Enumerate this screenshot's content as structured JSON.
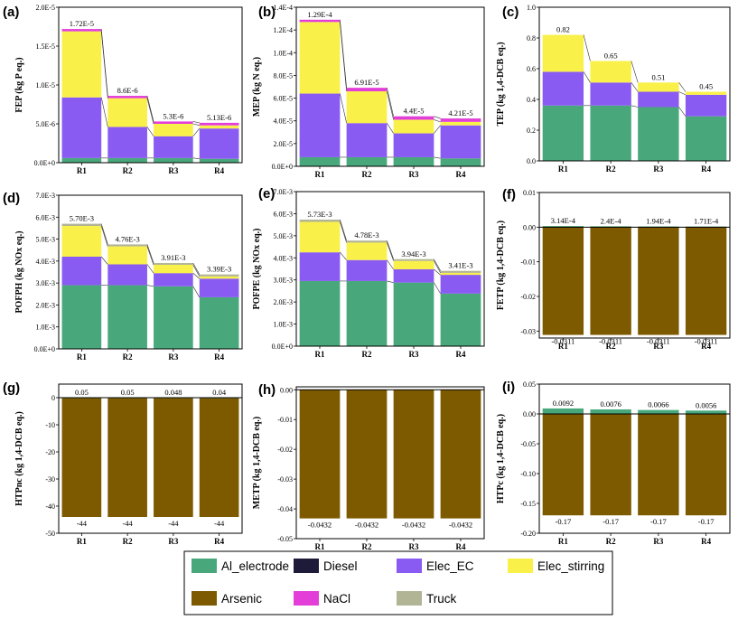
{
  "colors": {
    "Al_electrode": "#48A87C",
    "Diesel": "#1E1A3A",
    "Elec_EC": "#8A5BF2",
    "Elec_stirring": "#FAF04A",
    "Arsenic": "#7D5A00",
    "NaCl": "#E33FD8",
    "Truck": "#B2B496"
  },
  "legend": {
    "entries": [
      "Al_electrode",
      "Diesel",
      "Elec_EC",
      "Elec_stirring",
      "Arsenic",
      "NaCl",
      "Truck"
    ]
  },
  "chart_data": [
    {
      "panel": "(a)",
      "type": "bar",
      "stacked": true,
      "ylabel": "FEP (kg P eq.)",
      "categories": [
        "R1",
        "R2",
        "R3",
        "R4"
      ],
      "ylim": [
        0,
        2e-05
      ],
      "yticks": [
        0,
        5e-06,
        1e-05,
        1.5e-05,
        2e-05
      ],
      "ytick_labels": [
        "0.0E+0",
        "5.0E-6",
        "1.0E-5",
        "1.5E-5",
        "2.0E-5"
      ],
      "series": [
        {
          "name": "Al_electrode",
          "values": [
            6e-07,
            6e-07,
            6e-07,
            5e-07
          ]
        },
        {
          "name": "Elec_EC",
          "values": [
            7.8e-06,
            4e-06,
            2.8e-06,
            3.9e-06
          ]
        },
        {
          "name": "Elec_stirring",
          "values": [
            8.5e-06,
            3.7e-06,
            1.6e-06,
            4e-07
          ]
        },
        {
          "name": "NaCl",
          "values": [
            3e-07,
            3e-07,
            3e-07,
            3.3e-07
          ]
        }
      ],
      "top_labels": [
        "1.72E-5",
        "8.6E-6",
        "5.3E-6",
        "5.13E-6"
      ]
    },
    {
      "panel": "(b)",
      "type": "bar",
      "stacked": true,
      "ylabel": "MEP (kg N eq.)",
      "categories": [
        "R1",
        "R2",
        "R3",
        "R4"
      ],
      "ylim": [
        0,
        0.00014
      ],
      "yticks": [
        0,
        2e-05,
        4e-05,
        6e-05,
        8e-05,
        0.0001,
        0.00012,
        0.00014
      ],
      "ytick_labels": [
        "0.0E+0",
        "2.0E-5",
        "4.0E-5",
        "6.0E-5",
        "8.0E-5",
        "1.0E-4",
        "1.2E-4",
        "1.4E-4"
      ],
      "series": [
        {
          "name": "Al_electrode",
          "values": [
            8e-06,
            8e-06,
            8e-06,
            7e-06
          ]
        },
        {
          "name": "Elec_EC",
          "values": [
            5.6e-05,
            3e-05,
            2.1e-05,
            2.9e-05
          ]
        },
        {
          "name": "Elec_stirring",
          "values": [
            6.3e-05,
            2.8e-05,
            1.2e-05,
            3.1e-06
          ]
        },
        {
          "name": "NaCl",
          "values": [
            2e-06,
            3.1e-06,
            3e-06,
            3e-06
          ]
        }
      ],
      "top_labels": [
        "1.29E-4",
        "6.91E-5",
        "4.4E-5",
        "4.21E-5"
      ]
    },
    {
      "panel": "(c)",
      "type": "bar",
      "stacked": true,
      "ylabel": "TEP (kg 1,4-DCB eq.)",
      "categories": [
        "R1",
        "R2",
        "R3",
        "R4"
      ],
      "ylim": [
        0,
        1.0
      ],
      "yticks": [
        0,
        0.2,
        0.4,
        0.6,
        0.8,
        1.0
      ],
      "ytick_labels": [
        "0.0",
        "0.2",
        "0.4",
        "0.6",
        "0.8",
        "1.0"
      ],
      "series": [
        {
          "name": "Al_electrode",
          "values": [
            0.36,
            0.36,
            0.35,
            0.29
          ]
        },
        {
          "name": "Elec_EC",
          "values": [
            0.22,
            0.15,
            0.1,
            0.14
          ]
        },
        {
          "name": "Elec_stirring",
          "values": [
            0.24,
            0.14,
            0.06,
            0.02
          ]
        }
      ],
      "top_labels": [
        "0.82",
        "0.65",
        "0.51",
        "0.45"
      ]
    },
    {
      "panel": "(d)",
      "type": "bar",
      "stacked": true,
      "ylabel": "POFPH (kg NOx eq.)",
      "categories": [
        "R1",
        "R2",
        "R3",
        "R4"
      ],
      "ylim": [
        0,
        0.007
      ],
      "yticks": [
        0,
        0.001,
        0.002,
        0.003,
        0.004,
        0.005,
        0.006,
        0.007
      ],
      "ytick_labels": [
        "0.0E+0",
        "1.0E-3",
        "2.0E-3",
        "3.0E-3",
        "4.0E-3",
        "5.0E-3",
        "6.0E-3",
        "7.0E-3"
      ],
      "series": [
        {
          "name": "Al_electrode",
          "values": [
            0.0029,
            0.0029,
            0.00285,
            0.00235
          ]
        },
        {
          "name": "Elec_EC",
          "values": [
            0.0013,
            0.00095,
            0.0006,
            0.00085
          ]
        },
        {
          "name": "Elec_stirring",
          "values": [
            0.0014,
            0.00082,
            0.00038,
            0.0001
          ]
        },
        {
          "name": "Truck",
          "values": [
            0.0001,
            9e-05,
            8e-05,
            9e-05
          ]
        }
      ],
      "top_labels": [
        "5.70E-3",
        "4.76E-3",
        "3.91E-3",
        "3.39E-3"
      ]
    },
    {
      "panel": "(e)",
      "type": "bar",
      "stacked": true,
      "ylabel": "POFPE (kg NOx eq.)",
      "categories": [
        "R1",
        "R2",
        "R3",
        "R4"
      ],
      "ylim": [
        0,
        0.007
      ],
      "yticks": [
        0,
        0.001,
        0.002,
        0.003,
        0.004,
        0.005,
        0.006,
        0.007
      ],
      "ytick_labels": [
        "0.0E+0",
        "1.0E-3",
        "2.0E-3",
        "3.0E-3",
        "4.0E-3",
        "5.0E-3",
        "6.0E-3",
        "7.0E-3"
      ],
      "series": [
        {
          "name": "Al_electrode",
          "values": [
            0.00295,
            0.00295,
            0.00288,
            0.00238
          ]
        },
        {
          "name": "Elec_EC",
          "values": [
            0.0013,
            0.00095,
            0.0006,
            0.00085
          ]
        },
        {
          "name": "Elec_stirring",
          "values": [
            0.00138,
            0.00079,
            0.00038,
            9e-05
          ]
        },
        {
          "name": "Truck",
          "values": [
            0.0001,
            9e-05,
            8e-05,
            9e-05
          ]
        }
      ],
      "top_labels": [
        "5.73E-3",
        "4.78E-3",
        "3.94E-3",
        "3.41E-3"
      ]
    },
    {
      "panel": "(f)",
      "type": "bar",
      "stacked": true,
      "ylabel": "FETP (kg 1,4-DCB eq.)",
      "categories": [
        "R1",
        "R2",
        "R3",
        "R4"
      ],
      "ylim": [
        -0.032,
        0.01
      ],
      "yticks": [
        0.01,
        0,
        -0.01,
        -0.02,
        -0.03
      ],
      "ytick_labels": [
        "0.01",
        "0.00",
        "-0.01",
        "-0.02",
        "-0.03"
      ],
      "series": [
        {
          "name": "Arsenic",
          "values": [
            -0.0311,
            -0.0311,
            -0.0311,
            -0.0311
          ]
        },
        {
          "name": "Al_electrode",
          "values": [
            0.000314,
            0.00024,
            0.000194,
            0.000171
          ]
        }
      ],
      "top_labels": [
        "3.14E-4",
        "2.4E-4",
        "1.94E-4",
        "1.71E-4"
      ],
      "bottom_labels": [
        "-0.0311",
        "-0.0311",
        "-0.0311",
        "-0.0311"
      ]
    },
    {
      "panel": "(g)",
      "type": "bar",
      "stacked": true,
      "ylabel": "HTPnc (kg 1,4-DCB eq.)",
      "categories": [
        "R1",
        "R2",
        "R3",
        "R4"
      ],
      "ylim": [
        -50,
        5
      ],
      "yticks": [
        0,
        -10,
        -20,
        -30,
        -40,
        -50
      ],
      "ytick_labels": [
        "0",
        "-10",
        "-20",
        "-30",
        "-40",
        "-50"
      ],
      "series": [
        {
          "name": "Arsenic",
          "values": [
            -44,
            -44,
            -44,
            -44
          ]
        },
        {
          "name": "Al_electrode",
          "values": [
            0.05,
            0.05,
            0.048,
            0.04
          ]
        }
      ],
      "top_labels": [
        "0.05",
        "0.05",
        "0.048",
        "0.04"
      ],
      "bottom_labels": [
        "-44",
        "-44",
        "-44",
        "-44"
      ]
    },
    {
      "panel": "(h)",
      "type": "bar",
      "stacked": true,
      "ylabel": "METP (kg 1,4-DCB eq.)",
      "categories": [
        "R1",
        "R2",
        "R3",
        "R4"
      ],
      "ylim": [
        -0.05,
        0.001
      ],
      "yticks": [
        0,
        -0.01,
        -0.02,
        -0.03,
        -0.04,
        -0.05
      ],
      "ytick_labels": [
        "0.00",
        "-0.01",
        "-0.02",
        "-0.03",
        "-0.04",
        "-0.05"
      ],
      "series": [
        {
          "name": "Arsenic",
          "values": [
            -0.0432,
            -0.0432,
            -0.0432,
            -0.0432
          ]
        }
      ],
      "bottom_labels": [
        "-0.0432",
        "-0.0432",
        "-0.0432",
        "-0.0432"
      ]
    },
    {
      "panel": "(i)",
      "type": "bar",
      "stacked": true,
      "ylabel": "HTPc (kg 1,4-DCB eq.)",
      "categories": [
        "R1",
        "R2",
        "R3",
        "R4"
      ],
      "ylim": [
        -0.2,
        0.05
      ],
      "yticks": [
        0.05,
        0,
        -0.05,
        -0.1,
        -0.15,
        -0.2
      ],
      "ytick_labels": [
        "0.05",
        "0.00",
        "-0.05",
        "-0.10",
        "-0.15",
        "-0.20"
      ],
      "series": [
        {
          "name": "Arsenic",
          "values": [
            -0.17,
            -0.17,
            -0.17,
            -0.17
          ]
        },
        {
          "name": "Al_electrode",
          "values": [
            0.0092,
            0.0076,
            0.0066,
            0.0056
          ]
        }
      ],
      "top_labels": [
        "0.0092",
        "0.0076",
        "0.0066",
        "0.0056"
      ],
      "bottom_labels": [
        "-0.17",
        "-0.17",
        "-0.17",
        "-0.17"
      ]
    }
  ]
}
